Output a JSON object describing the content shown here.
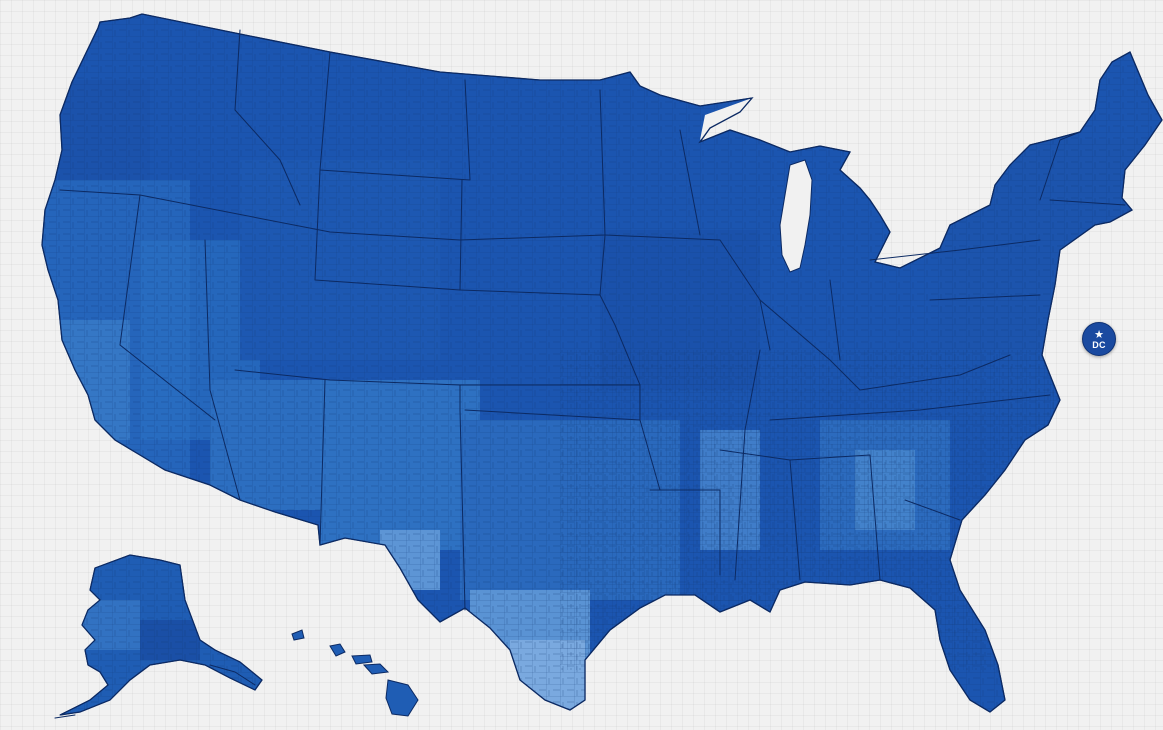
{
  "map": {
    "type": "choropleth",
    "region": "United States",
    "unit": "county",
    "palette": {
      "darkest": "#1648a3",
      "dark": "#1b56b3",
      "mid": "#2466ba",
      "light": "#4e8ad0",
      "lightest": "#8fb8e6",
      "border": "#0c2a63"
    }
  },
  "dc_marker": {
    "label": "DC",
    "icon": "star-icon",
    "color": "#1a4aa0"
  }
}
